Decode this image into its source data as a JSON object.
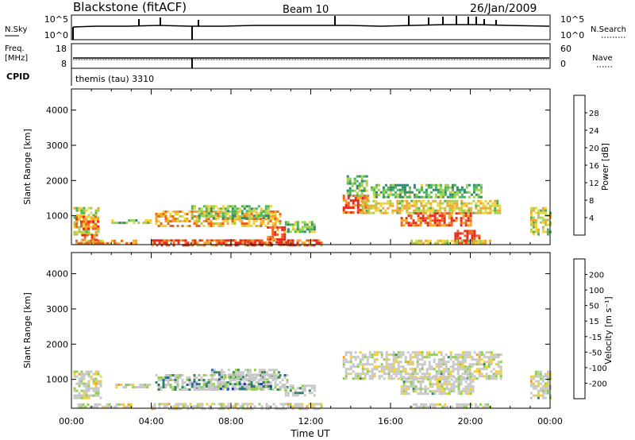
{
  "header": {
    "station": "Blackstone (fitACF)",
    "beam": "Beam 10",
    "date": "26/Jan/2009"
  },
  "noise_panel": {
    "left_label": "N.Sky",
    "left_ticks": [
      "10^5",
      "10^0"
    ],
    "right_label": "N.Search",
    "right_ticks": [
      "10^5",
      "10^0"
    ]
  },
  "freq_panel": {
    "left_label_line1": "Freq.",
    "left_label_line2": "[MHz]",
    "left_ticks": [
      "18",
      "8"
    ],
    "right_label": "Nave",
    "right_ticks": [
      "60",
      "0"
    ]
  },
  "cpid": {
    "label": "CPID",
    "value": "themis (tau) 3310"
  },
  "chart_data": [
    {
      "type": "heatmap",
      "title": "",
      "xlabel": "",
      "ylabel": "Slant Range [km]",
      "xlim": [
        0,
        24
      ],
      "ylim": [
        180,
        4600
      ],
      "yticks": [
        1000,
        2000,
        3000,
        4000
      ],
      "colorbar": {
        "label": "Power [dB]",
        "ticks": [
          "28",
          "24",
          "20",
          "16",
          "12",
          "8",
          "4"
        ],
        "range": [
          0,
          32
        ],
        "colors": [
          "#0f2bd6",
          "#2d5fb8",
          "#2e8a6a",
          "#49b45a",
          "#a4d050",
          "#f0d23a",
          "#f5a32a",
          "#f0611e",
          "#e62a1c"
        ]
      },
      "regions": [
        {
          "t0": 0.1,
          "t1": 1.4,
          "r0": 500,
          "r1": 1250,
          "level": 0.55
        },
        {
          "t0": 0.2,
          "t1": 1.3,
          "r0": 650,
          "r1": 1000,
          "level": 0.8
        },
        {
          "t0": 0.5,
          "t1": 1.3,
          "r0": 260,
          "r1": 480,
          "level": 0.85
        },
        {
          "t0": 0.2,
          "t1": 3.3,
          "r0": 190,
          "r1": 320,
          "level": 0.7
        },
        {
          "t0": 2.0,
          "t1": 4.0,
          "r0": 780,
          "r1": 900,
          "level": 0.45
        },
        {
          "t0": 4.2,
          "t1": 10.5,
          "r0": 720,
          "r1": 1150,
          "level": 0.7
        },
        {
          "t0": 6.0,
          "t1": 10.0,
          "r0": 950,
          "r1": 1300,
          "level": 0.45
        },
        {
          "t0": 4.0,
          "t1": 12.5,
          "r0": 190,
          "r1": 330,
          "level": 0.85
        },
        {
          "t0": 8.8,
          "t1": 10.8,
          "r0": 190,
          "r1": 280,
          "level": 0.98
        },
        {
          "t0": 9.8,
          "t1": 10.7,
          "r0": 300,
          "r1": 700,
          "level": 0.9
        },
        {
          "t0": 10.7,
          "t1": 12.2,
          "r0": 560,
          "r1": 850,
          "level": 0.45
        },
        {
          "t0": 13.6,
          "t1": 14.8,
          "r0": 1100,
          "r1": 1600,
          "level": 0.85
        },
        {
          "t0": 13.8,
          "t1": 14.8,
          "r0": 1600,
          "r1": 2150,
          "level": 0.4
        },
        {
          "t0": 14.5,
          "t1": 21.5,
          "r0": 1050,
          "r1": 1450,
          "level": 0.6
        },
        {
          "t0": 15.0,
          "t1": 20.5,
          "r0": 1500,
          "r1": 1900,
          "level": 0.4
        },
        {
          "t0": 16.5,
          "t1": 20.0,
          "r0": 700,
          "r1": 1100,
          "level": 0.85
        },
        {
          "t0": 19.2,
          "t1": 20.4,
          "r0": 250,
          "r1": 600,
          "level": 0.95
        },
        {
          "t0": 17.0,
          "t1": 21.0,
          "r0": 190,
          "r1": 320,
          "level": 0.6
        },
        {
          "t0": 23.0,
          "t1": 24.0,
          "r0": 450,
          "r1": 1250,
          "level": 0.55
        }
      ]
    },
    {
      "type": "heatmap",
      "title": "",
      "xlabel": "Time UT",
      "ylabel": "Slant Range [km]",
      "xlim": [
        0,
        24
      ],
      "ylim": [
        180,
        4600
      ],
      "xticks": [
        "00:00",
        "04:00",
        "08:00",
        "12:00",
        "16:00",
        "20:00",
        "00:00"
      ],
      "yticks": [
        1000,
        2000,
        3000,
        4000
      ],
      "colorbar": {
        "label": "Velocity [m s⁻¹]",
        "ticks": [
          "200",
          "100",
          "50",
          "15",
          "-15",
          "-50",
          "-100",
          "-200"
        ],
        "colors": [
          "#1f2fb5",
          "#2e60ad",
          "#2f8a55",
          "#8fd048",
          "#c8c8c8",
          "#f5d028",
          "#f5a020",
          "#f06418",
          "#e52a1e"
        ]
      },
      "regions": [
        {
          "t0": 0.1,
          "t1": 1.5,
          "r0": 450,
          "r1": 1250,
          "level": 0.5
        },
        {
          "t0": 0.3,
          "t1": 3.0,
          "r0": 190,
          "r1": 320,
          "level": 0.48
        },
        {
          "t0": 2.2,
          "t1": 4.0,
          "r0": 760,
          "r1": 880,
          "level": 0.5
        },
        {
          "t0": 4.2,
          "t1": 10.8,
          "r0": 700,
          "r1": 1150,
          "level": 0.65
        },
        {
          "t0": 6.0,
          "t1": 10.0,
          "r0": 700,
          "r1": 900,
          "level": 0.75
        },
        {
          "t0": 7.0,
          "t1": 10.5,
          "r0": 1000,
          "r1": 1300,
          "level": 0.62
        },
        {
          "t0": 4.0,
          "t1": 12.5,
          "r0": 190,
          "r1": 330,
          "level": 0.48
        },
        {
          "t0": 10.7,
          "t1": 12.2,
          "r0": 560,
          "r1": 850,
          "level": 0.63
        },
        {
          "t0": 13.6,
          "t1": 21.5,
          "r0": 1050,
          "r1": 1800,
          "level": 0.5
        },
        {
          "t0": 16.5,
          "t1": 20.2,
          "r0": 600,
          "r1": 1100,
          "level": 0.5
        },
        {
          "t0": 17.0,
          "t1": 21.0,
          "r0": 190,
          "r1": 320,
          "level": 0.48
        },
        {
          "t0": 23.0,
          "t1": 24.0,
          "r0": 450,
          "r1": 1250,
          "level": 0.5
        }
      ]
    }
  ]
}
